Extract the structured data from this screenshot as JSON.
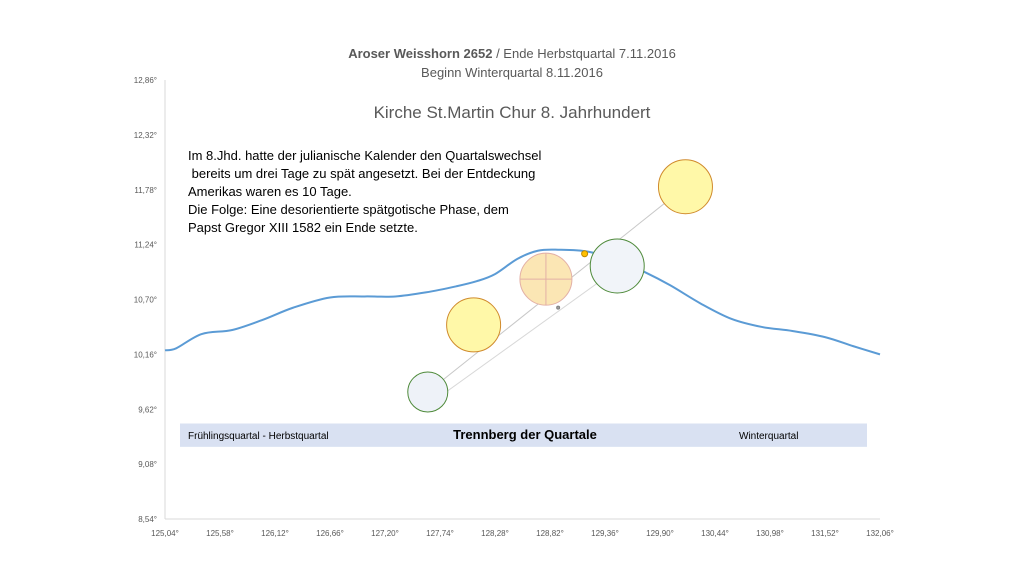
{
  "chart_data": {
    "type": "line",
    "title_bold": "Aroser Weisshorn 2652",
    "title_rest": " / Ende Herbstquartal 7.11.2016",
    "title_line2": "Beginn Winterquartal 8.11.2016",
    "subtitle": "Kirche St.Martin Chur 8. Jahrhundert",
    "annotation_lines": [
      "Im 8.Jhd. hatte der julianische Kalender den Quartalswechsel",
      " bereits um drei Tage zu spät angesetzt. Bei der Entdeckung",
      "Amerikas waren es 10 Tage.",
      "Die Folge: Eine desorientierte spätgotische Phase, dem",
      "Papst Gregor XIII 1582 ein Ende setzte."
    ],
    "band_left": "Frühlingsquartal - Herbstquartal",
    "band_center": "Trennberg der Quartale",
    "band_right": "Winterquartal",
    "band_range": [
      9.25,
      9.48
    ],
    "x_ticks": [
      "125,04°",
      "125,58°",
      "126,12°",
      "126,66°",
      "127,20°",
      "127,74°",
      "128,28°",
      "128,82°",
      "129,36°",
      "129,90°",
      "130,44°",
      "130,98°",
      "131,52°",
      "132,06°"
    ],
    "y_ticks": [
      "8,54°",
      "9,08°",
      "9,62°",
      "10,16°",
      "10,70°",
      "11,24°",
      "11,78°",
      "12,32°",
      "12,86°"
    ],
    "xlim": [
      125.04,
      132.06
    ],
    "ylim": [
      8.54,
      12.86
    ],
    "series": [
      {
        "color": "#5b9bd5",
        "points": [
          [
            125.04,
            10.2
          ],
          [
            125.15,
            10.22
          ],
          [
            125.4,
            10.36
          ],
          [
            125.7,
            10.4
          ],
          [
            126.0,
            10.5
          ],
          [
            126.3,
            10.62
          ],
          [
            126.66,
            10.72
          ],
          [
            127.0,
            10.73
          ],
          [
            127.3,
            10.73
          ],
          [
            127.6,
            10.77
          ],
          [
            127.9,
            10.83
          ],
          [
            128.1,
            10.88
          ],
          [
            128.28,
            10.95
          ],
          [
            128.5,
            11.1
          ],
          [
            128.7,
            11.18
          ],
          [
            128.9,
            11.19
          ],
          [
            129.2,
            11.17
          ],
          [
            129.5,
            11.08
          ],
          [
            129.75,
            10.97
          ],
          [
            130.0,
            10.84
          ],
          [
            130.3,
            10.66
          ],
          [
            130.6,
            10.51
          ],
          [
            130.9,
            10.43
          ],
          [
            131.2,
            10.39
          ],
          [
            131.52,
            10.33
          ],
          [
            131.8,
            10.24
          ],
          [
            132.06,
            10.16
          ]
        ]
      }
    ],
    "markers": [
      {
        "x": 127.62,
        "y": 9.79,
        "size": 20,
        "fill": "#eef2f8",
        "stroke": "#4e8a3a"
      },
      {
        "x": 128.07,
        "y": 10.45,
        "size": 27,
        "fill": "#fff8a8",
        "stroke": "#d08a2c"
      },
      {
        "x": 128.78,
        "y": 10.9,
        "size": 26,
        "fill": "#fbe6b4",
        "stroke": "#e3b0a6"
      },
      {
        "x": 129.48,
        "y": 11.03,
        "size": 27,
        "fill": "#f1f4f9",
        "stroke": "#4e8a3a"
      },
      {
        "x": 130.15,
        "y": 11.81,
        "size": 27,
        "fill": "#fff8a8",
        "stroke": "#d08a2c"
      },
      {
        "x": 129.16,
        "y": 11.15,
        "size": 3,
        "fill": "#ffc000",
        "stroke": "#c08a00"
      },
      {
        "x": 128.9,
        "y": 10.62,
        "size": 1.5,
        "fill": "#a0a0a0",
        "stroke": "#808080"
      }
    ],
    "trendline": {
      "from": [
        127.62,
        9.79
      ],
      "to": [
        130.15,
        11.81
      ],
      "color": "#c8c8c8"
    },
    "trendline2": {
      "from": [
        127.62,
        9.66
      ],
      "to": [
        129.7,
        11.16
      ],
      "color": "#d8d8d8"
    }
  }
}
